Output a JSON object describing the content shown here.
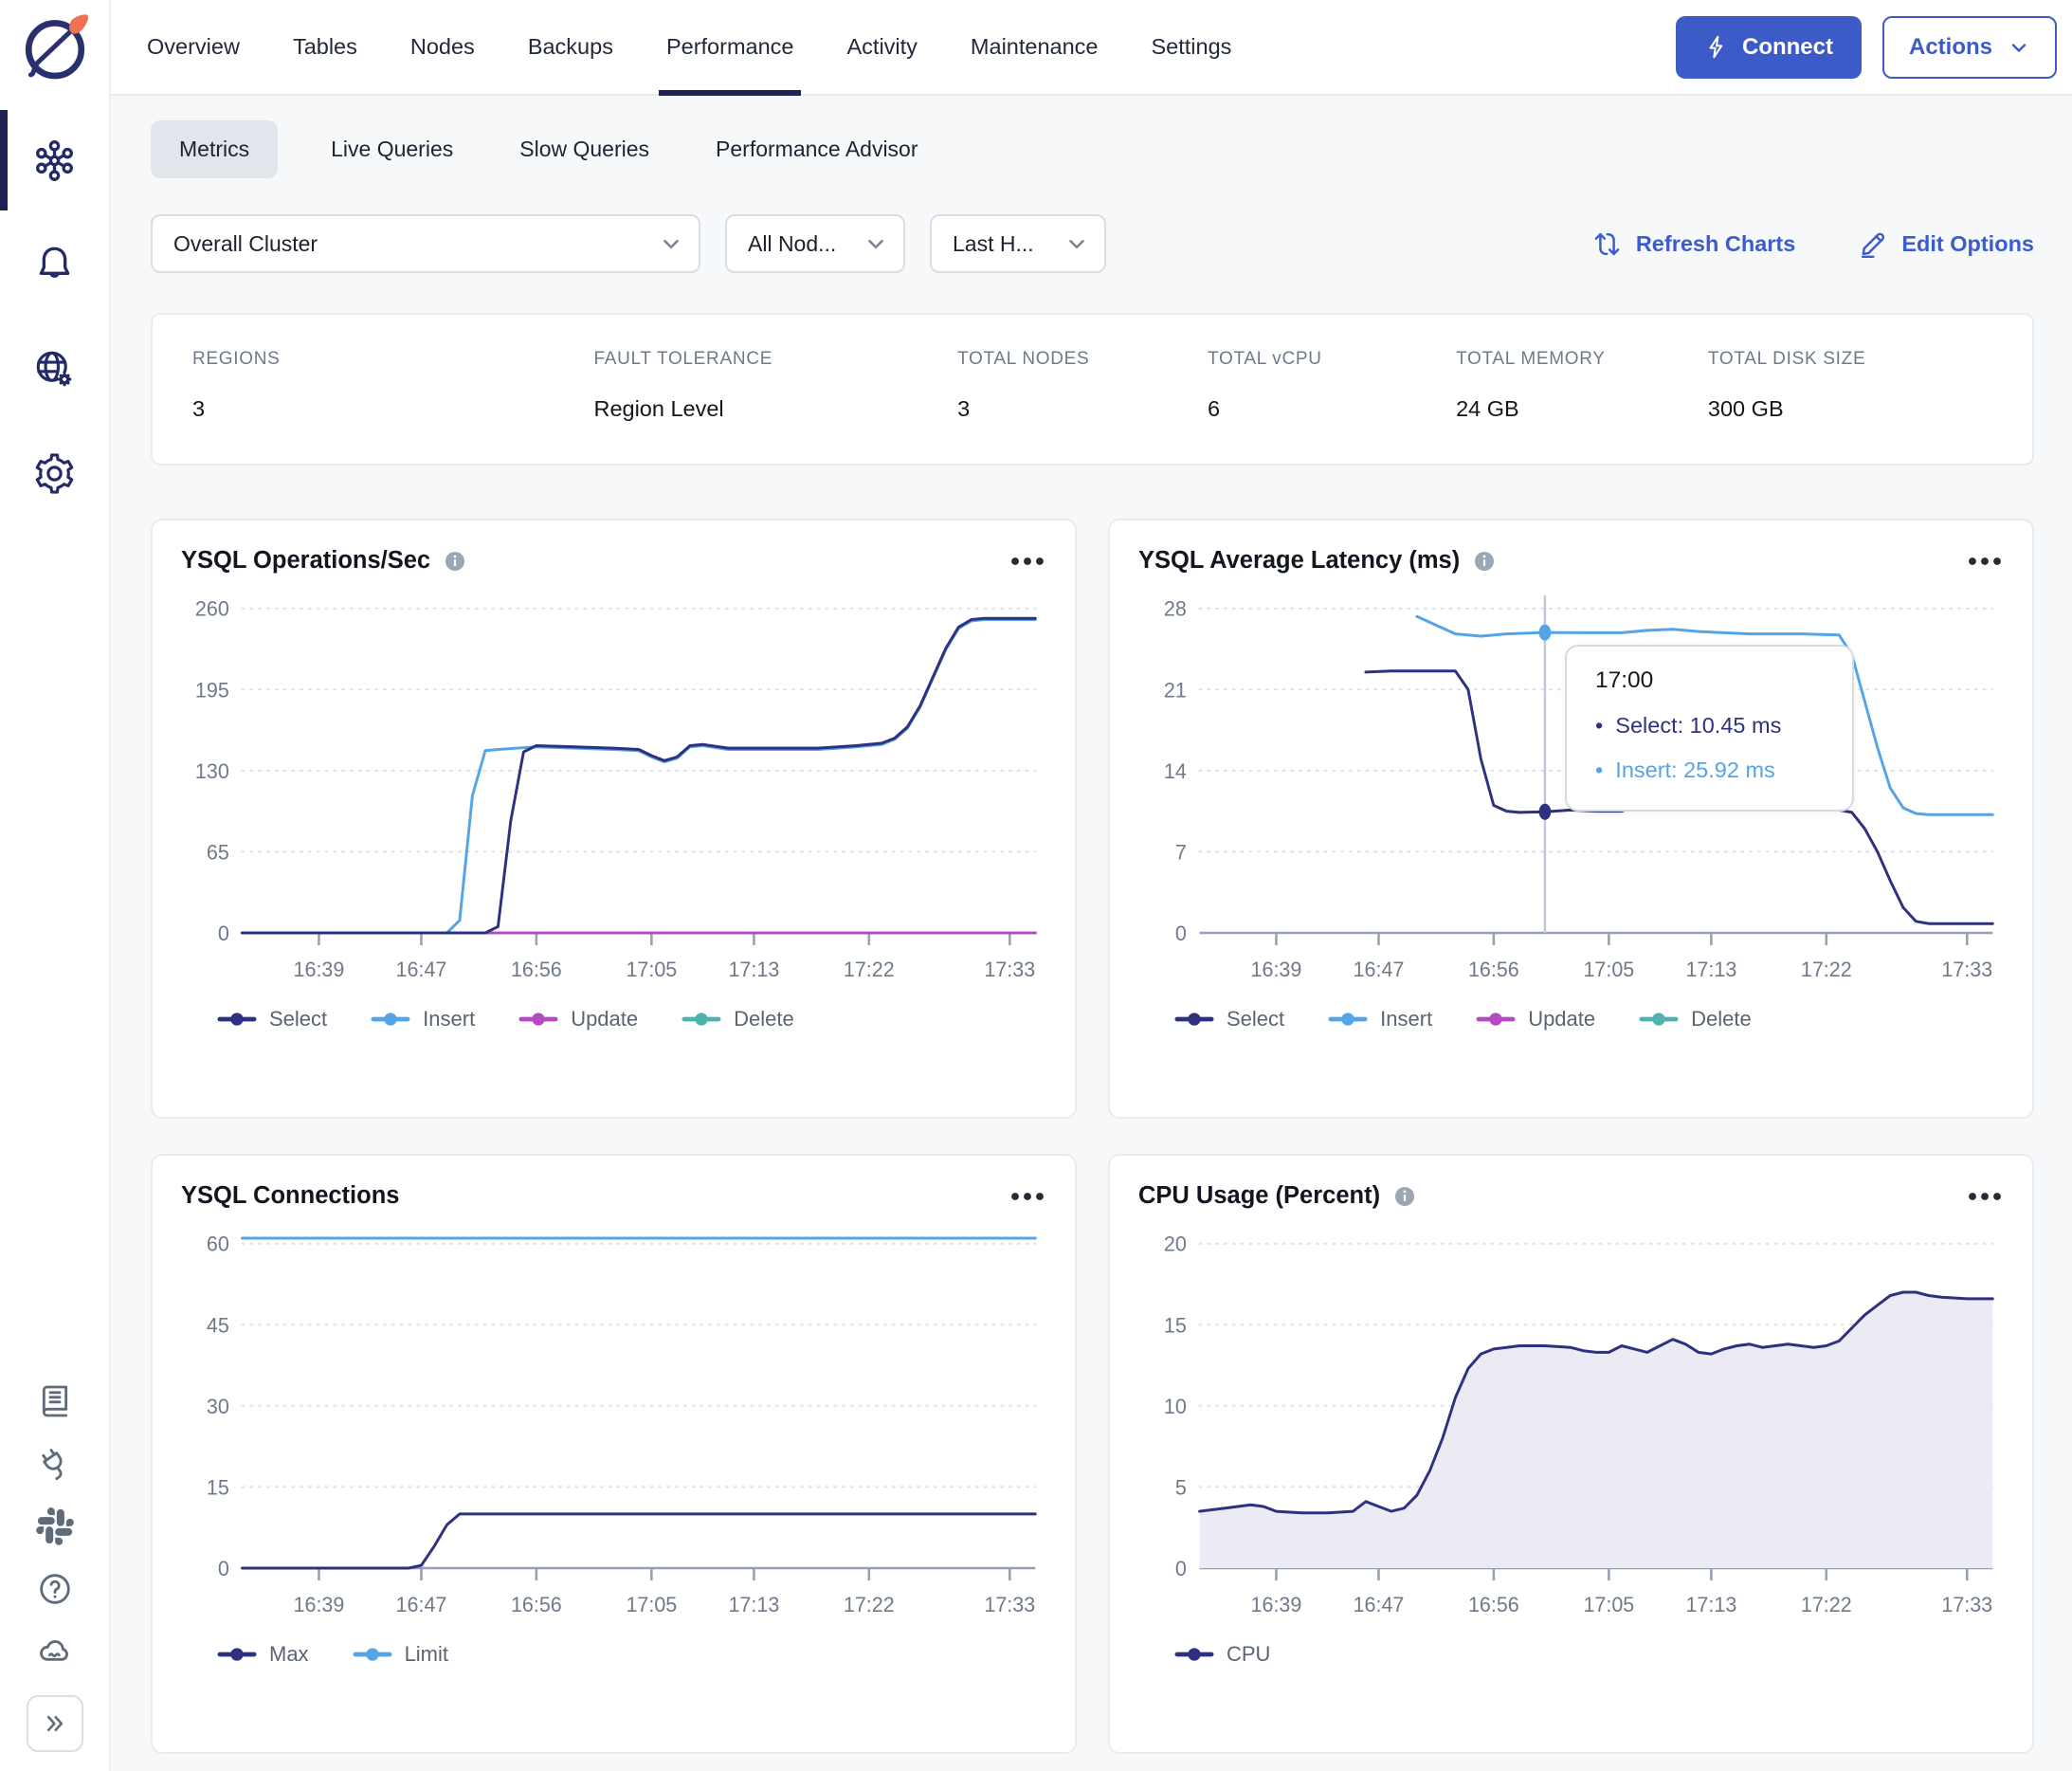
{
  "app": {
    "logo_icon": "yugabyte-planet-logo-icon"
  },
  "colors": {
    "accent_blue": "#3D5BC8",
    "active_tab_underline": "#1D2251",
    "select_navy": "#2E3180",
    "insert_blue": "#54A4E6",
    "update_magenta": "#B44BC0",
    "delete_teal": "#4FB2AE",
    "cpu_area_fill": "#ECEBF3",
    "page_background": "#F7F8FA"
  },
  "sidebar": {
    "top_items": [
      {
        "icon": "cluster-hub-icon",
        "active": true
      },
      {
        "icon": "bell-icon",
        "active": false
      },
      {
        "icon": "globe-gear-icon",
        "active": false
      },
      {
        "icon": "gear-icon",
        "active": false
      }
    ],
    "bottom_items": [
      {
        "icon": "book-icon"
      },
      {
        "icon": "plug-icon"
      },
      {
        "icon": "slack-icon"
      },
      {
        "icon": "help-icon"
      },
      {
        "icon": "cloud-icon"
      }
    ],
    "expand_icon": "chevrons-right-icon"
  },
  "header": {
    "tabs": [
      {
        "label": "Overview",
        "active": false
      },
      {
        "label": "Tables",
        "active": false
      },
      {
        "label": "Nodes",
        "active": false
      },
      {
        "label": "Backups",
        "active": false
      },
      {
        "label": "Performance",
        "active": true
      },
      {
        "label": "Activity",
        "active": false
      },
      {
        "label": "Maintenance",
        "active": false
      },
      {
        "label": "Settings",
        "active": false
      }
    ],
    "connect": {
      "icon": "lightning-icon",
      "label": "Connect"
    },
    "actions": {
      "label": "Actions",
      "icon": "chevron-down-icon"
    }
  },
  "subtabs": {
    "items": [
      {
        "label": "Metrics",
        "active": true
      },
      {
        "label": "Live Queries",
        "active": false
      },
      {
        "label": "Slow Queries",
        "active": false
      },
      {
        "label": "Performance Advisor",
        "active": false
      }
    ]
  },
  "filters": {
    "dropdowns": [
      {
        "value": "Overall Cluster"
      },
      {
        "value": "All Nod..."
      },
      {
        "value": "Last H..."
      }
    ],
    "refresh": {
      "icon": "refresh-icon",
      "label": "Refresh Charts"
    },
    "edit": {
      "icon": "pencil-icon",
      "label": "Edit Options"
    }
  },
  "summary": {
    "items": [
      {
        "label": "REGIONS",
        "value": "3"
      },
      {
        "label": "FAULT TOLERANCE",
        "value": "Region Level"
      },
      {
        "label": "TOTAL NODES",
        "value": "3"
      },
      {
        "label": "TOTAL vCPU",
        "value": "6"
      },
      {
        "label": "TOTAL MEMORY",
        "value": "24 GB"
      },
      {
        "label": "TOTAL DISK SIZE",
        "value": "300 GB"
      }
    ]
  },
  "chart_data": [
    {
      "type": "line",
      "title": "YSQL Operations/Sec",
      "has_info_icon": true,
      "menu_icon": "ellipsis-icon",
      "x_start": "16:33",
      "x_end": "17:35",
      "xticks": [
        "16:39",
        "16:47",
        "16:56",
        "17:05",
        "17:13",
        "17:22",
        "17:33"
      ],
      "yticks": [
        0,
        65,
        130,
        195,
        260
      ],
      "legend_position": "bottom",
      "grid": true,
      "series": [
        {
          "name": "Select",
          "color": "#2E3180",
          "points": [
            [
              "16:33",
              0
            ],
            [
              "16:52",
              0
            ],
            [
              "16:53",
              5
            ],
            [
              "16:54",
              90
            ],
            [
              "16:55",
              145
            ],
            [
              "16:56",
              150
            ],
            [
              "16:59",
              149
            ],
            [
              "17:02",
              148
            ],
            [
              "17:04",
              147
            ],
            [
              "17:05",
              142
            ],
            [
              "17:06",
              138
            ],
            [
              "17:07",
              141
            ],
            [
              "17:08",
              150
            ],
            [
              "17:09",
              151
            ],
            [
              "17:11",
              148
            ],
            [
              "17:14",
              148
            ],
            [
              "17:18",
              148
            ],
            [
              "17:21",
              150
            ],
            [
              "17:23",
              152
            ],
            [
              "17:24",
              156
            ],
            [
              "17:25",
              165
            ],
            [
              "17:26",
              182
            ],
            [
              "17:27",
              205
            ],
            [
              "17:28",
              228
            ],
            [
              "17:29",
              245
            ],
            [
              "17:30",
              251
            ],
            [
              "17:31",
              252
            ],
            [
              "17:35",
              252
            ]
          ]
        },
        {
          "name": "Insert",
          "color": "#54A4E6",
          "points": [
            [
              "16:33",
              0
            ],
            [
              "16:49",
              0
            ],
            [
              "16:50",
              10
            ],
            [
              "16:51",
              110
            ],
            [
              "16:52",
              146
            ],
            [
              "16:53",
              147
            ],
            [
              "16:56",
              149
            ],
            [
              "16:59",
              148
            ],
            [
              "17:02",
              147
            ],
            [
              "17:04",
              146
            ],
            [
              "17:05",
              141
            ],
            [
              "17:06",
              137
            ],
            [
              "17:07",
              140
            ],
            [
              "17:08",
              149
            ],
            [
              "17:09",
              150
            ],
            [
              "17:11",
              147
            ],
            [
              "17:14",
              147
            ],
            [
              "17:18",
              147
            ],
            [
              "17:21",
              149
            ],
            [
              "17:23",
              151
            ],
            [
              "17:24",
              155
            ],
            [
              "17:25",
              164
            ],
            [
              "17:26",
              181
            ],
            [
              "17:27",
              204
            ],
            [
              "17:28",
              227
            ],
            [
              "17:29",
              244
            ],
            [
              "17:30",
              250
            ],
            [
              "17:31",
              251
            ],
            [
              "17:35",
              251
            ]
          ]
        },
        {
          "name": "Update",
          "color": "#B44BC0",
          "points": [
            [
              "16:33",
              0
            ],
            [
              "17:35",
              0
            ]
          ]
        },
        {
          "name": "Delete",
          "color": "#4FB2AE",
          "points": [
            [
              "16:33",
              0
            ],
            [
              "17:35",
              0
            ]
          ]
        }
      ]
    },
    {
      "type": "line",
      "title": "YSQL Average Latency (ms)",
      "has_info_icon": true,
      "menu_icon": "ellipsis-icon",
      "x_start": "16:33",
      "x_end": "17:35",
      "xticks": [
        "16:39",
        "16:47",
        "16:56",
        "17:05",
        "17:13",
        "17:22",
        "17:33"
      ],
      "yticks": [
        0,
        7,
        14,
        21,
        28
      ],
      "legend_position": "bottom",
      "grid": true,
      "series": [
        {
          "name": "Select",
          "color": "#2E3180",
          "points": [
            [
              "16:46",
              22.5
            ],
            [
              "16:48",
              22.6
            ],
            [
              "16:53",
              22.6
            ],
            [
              "16:54",
              21
            ],
            [
              "16:55",
              15
            ],
            [
              "16:56",
              11
            ],
            [
              "16:57",
              10.5
            ],
            [
              "16:58",
              10.4
            ],
            [
              "17:00",
              10.45
            ],
            [
              "17:02",
              10.6
            ],
            [
              "17:04",
              10.5
            ],
            [
              "17:06",
              10.5
            ],
            [
              "17:08",
              11.2
            ],
            [
              "17:09",
              10.8
            ],
            [
              "17:10",
              10.7
            ],
            [
              "17:12",
              10.6
            ],
            [
              "17:16",
              10.6
            ],
            [
              "17:20",
              10.6
            ],
            [
              "17:23",
              10.6
            ],
            [
              "17:24",
              10.4
            ],
            [
              "17:25",
              9
            ],
            [
              "17:26",
              7
            ],
            [
              "17:27",
              4.5
            ],
            [
              "17:28",
              2.2
            ],
            [
              "17:29",
              1
            ],
            [
              "17:30",
              0.8
            ],
            [
              "17:35",
              0.8
            ]
          ]
        },
        {
          "name": "Insert",
          "color": "#54A4E6",
          "points": [
            [
              "16:50",
              27.3
            ],
            [
              "16:52",
              26.3
            ],
            [
              "16:53",
              25.8
            ],
            [
              "16:55",
              25.6
            ],
            [
              "16:57",
              25.8
            ],
            [
              "17:00",
              25.92
            ],
            [
              "17:04",
              25.9
            ],
            [
              "17:06",
              25.9
            ],
            [
              "17:08",
              26.1
            ],
            [
              "17:10",
              26.2
            ],
            [
              "17:12",
              26.0
            ],
            [
              "17:14",
              25.9
            ],
            [
              "17:16",
              25.8
            ],
            [
              "17:20",
              25.8
            ],
            [
              "17:23",
              25.7
            ],
            [
              "17:24",
              24
            ],
            [
              "17:25",
              20
            ],
            [
              "17:26",
              16
            ],
            [
              "17:27",
              12.5
            ],
            [
              "17:28",
              10.8
            ],
            [
              "17:29",
              10.3
            ],
            [
              "17:30",
              10.2
            ],
            [
              "17:35",
              10.2
            ]
          ]
        },
        {
          "name": "Update",
          "color": "#B44BC0",
          "points": []
        },
        {
          "name": "Delete",
          "color": "#4FB2AE",
          "points": []
        }
      ],
      "crosshair": {
        "x": "17:00",
        "color": "#C2C7D1",
        "dots": [
          {
            "series": "Select",
            "y": 10.45
          },
          {
            "series": "Insert",
            "y": 25.92
          }
        ]
      },
      "tooltip": {
        "time": "17:00",
        "rows": [
          {
            "label": "Select",
            "value": "10.45 ms",
            "color": "#2E3180"
          },
          {
            "label": "Insert",
            "value": "25.92 ms",
            "color": "#54A4E6"
          }
        ]
      }
    },
    {
      "type": "line",
      "title": "YSQL Connections",
      "has_info_icon": false,
      "menu_icon": "ellipsis-icon",
      "x_start": "16:33",
      "x_end": "17:35",
      "xticks": [
        "16:39",
        "16:47",
        "16:56",
        "17:05",
        "17:13",
        "17:22",
        "17:33"
      ],
      "yticks": [
        0,
        15,
        30,
        45,
        60
      ],
      "legend_position": "bottom",
      "grid": true,
      "series": [
        {
          "name": "Max",
          "color": "#2E3180",
          "points": [
            [
              "16:33",
              0
            ],
            [
              "16:46",
              0
            ],
            [
              "16:47",
              0.5
            ],
            [
              "16:48",
              4
            ],
            [
              "16:49",
              8
            ],
            [
              "16:50",
              10
            ],
            [
              "16:52",
              10
            ],
            [
              "17:35",
              10
            ]
          ]
        },
        {
          "name": "Limit",
          "color": "#54A4E6",
          "points": [
            [
              "16:33",
              61
            ],
            [
              "17:35",
              61
            ]
          ]
        }
      ]
    },
    {
      "type": "area",
      "title": "CPU Usage (Percent)",
      "has_info_icon": true,
      "menu_icon": "ellipsis-icon",
      "x_start": "16:33",
      "x_end": "17:35",
      "xticks": [
        "16:39",
        "16:47",
        "16:56",
        "17:05",
        "17:13",
        "17:22",
        "17:33"
      ],
      "yticks": [
        0,
        5,
        10,
        15,
        20
      ],
      "legend_position": "bottom",
      "grid": true,
      "area_color": "#ECEBF3",
      "series": [
        {
          "name": "CPU",
          "color": "#2E3180",
          "area": true,
          "points": [
            [
              "16:33",
              3.5
            ],
            [
              "16:35",
              3.7
            ],
            [
              "16:37",
              3.9
            ],
            [
              "16:38",
              3.8
            ],
            [
              "16:39",
              3.5
            ],
            [
              "16:41",
              3.4
            ],
            [
              "16:43",
              3.4
            ],
            [
              "16:45",
              3.5
            ],
            [
              "16:46",
              4.1
            ],
            [
              "16:47",
              3.8
            ],
            [
              "16:48",
              3.5
            ],
            [
              "16:49",
              3.7
            ],
            [
              "16:50",
              4.5
            ],
            [
              "16:51",
              6
            ],
            [
              "16:52",
              8
            ],
            [
              "16:53",
              10.5
            ],
            [
              "16:54",
              12.3
            ],
            [
              "16:55",
              13.2
            ],
            [
              "16:56",
              13.5
            ],
            [
              "16:57",
              13.6
            ],
            [
              "16:58",
              13.7
            ],
            [
              "17:00",
              13.7
            ],
            [
              "17:02",
              13.6
            ],
            [
              "17:03",
              13.4
            ],
            [
              "17:04",
              13.3
            ],
            [
              "17:05",
              13.3
            ],
            [
              "17:06",
              13.7
            ],
            [
              "17:07",
              13.5
            ],
            [
              "17:08",
              13.3
            ],
            [
              "17:09",
              13.7
            ],
            [
              "17:10",
              14.1
            ],
            [
              "17:11",
              13.8
            ],
            [
              "17:12",
              13.3
            ],
            [
              "17:13",
              13.2
            ],
            [
              "17:14",
              13.5
            ],
            [
              "17:15",
              13.7
            ],
            [
              "17:16",
              13.8
            ],
            [
              "17:17",
              13.6
            ],
            [
              "17:18",
              13.7
            ],
            [
              "17:19",
              13.8
            ],
            [
              "17:20",
              13.7
            ],
            [
              "17:21",
              13.6
            ],
            [
              "17:22",
              13.7
            ],
            [
              "17:23",
              14.0
            ],
            [
              "17:24",
              14.8
            ],
            [
              "17:25",
              15.6
            ],
            [
              "17:26",
              16.2
            ],
            [
              "17:27",
              16.8
            ],
            [
              "17:28",
              17.0
            ],
            [
              "17:29",
              17.0
            ],
            [
              "17:30",
              16.8
            ],
            [
              "17:31",
              16.7
            ],
            [
              "17:33",
              16.6
            ],
            [
              "17:35",
              16.6
            ]
          ]
        }
      ]
    }
  ]
}
